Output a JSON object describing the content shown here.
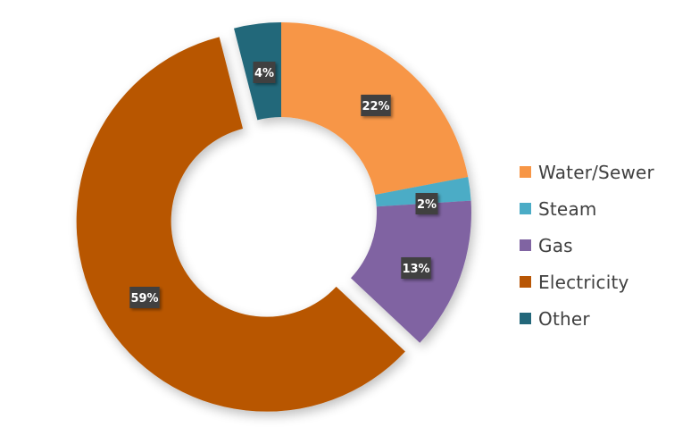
{
  "chart_data": {
    "type": "pie",
    "subtype": "doughnut",
    "title": "",
    "categories": [
      "Water/Sewer",
      "Steam",
      "Gas",
      "Electricity",
      "Other"
    ],
    "values": [
      22,
      2,
      13,
      59,
      4
    ],
    "labels": [
      "22%",
      "2%",
      "13%",
      "59%",
      "4%"
    ],
    "colors": [
      "#F79646",
      "#4BACC6",
      "#8064A2",
      "#B85605",
      "#23677A"
    ],
    "exploded": [
      "Electricity"
    ],
    "legend_position": "right",
    "start_angle_deg": 0,
    "direction": "clockwise"
  },
  "legend": {
    "items": [
      {
        "label": "Water/Sewer",
        "color": "#F79646"
      },
      {
        "label": "Steam",
        "color": "#4BACC6"
      },
      {
        "label": "Gas",
        "color": "#8064A2"
      },
      {
        "label": "Electricity",
        "color": "#B85605"
      },
      {
        "label": "Other",
        "color": "#23677A"
      }
    ]
  }
}
